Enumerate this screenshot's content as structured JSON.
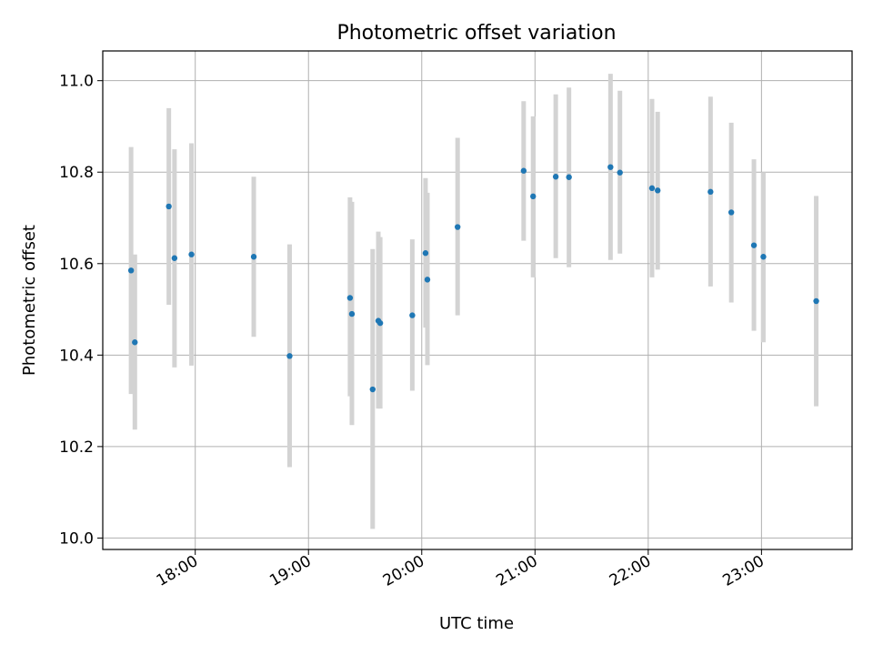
{
  "chart_data": {
    "type": "scatter",
    "title": "Photometric offset variation",
    "xlabel": "UTC time",
    "ylabel": "Photometric offset",
    "xlim": [
      "17:11",
      "23:48"
    ],
    "ylim": [
      9.975,
      11.065
    ],
    "x_ticks": [
      "18:00",
      "19:00",
      "20:00",
      "21:00",
      "22:00",
      "23:00"
    ],
    "y_ticks": [
      "10.0",
      "10.2",
      "10.4",
      "10.6",
      "10.8",
      "11.0"
    ],
    "grid": true,
    "marker_color": "#1f77b4",
    "errorbar_color": "#d3d3d3",
    "points": [
      {
        "x": "17:26",
        "y": 10.585,
        "yerr_low": 10.315,
        "yerr_high": 10.855
      },
      {
        "x": "17:28",
        "y": 10.428,
        "yerr_low": 10.237,
        "yerr_high": 10.62
      },
      {
        "x": "17:46",
        "y": 10.725,
        "yerr_low": 10.51,
        "yerr_high": 10.94
      },
      {
        "x": "17:49",
        "y": 10.612,
        "yerr_low": 10.373,
        "yerr_high": 10.85
      },
      {
        "x": "17:58",
        "y": 10.62,
        "yerr_low": 10.377,
        "yerr_high": 10.863
      },
      {
        "x": "18:31",
        "y": 10.615,
        "yerr_low": 10.44,
        "yerr_high": 10.79
      },
      {
        "x": "18:50",
        "y": 10.398,
        "yerr_low": 10.155,
        "yerr_high": 10.642
      },
      {
        "x": "19:22",
        "y": 10.525,
        "yerr_low": 10.31,
        "yerr_high": 10.745
      },
      {
        "x": "19:23",
        "y": 10.49,
        "yerr_low": 10.247,
        "yerr_high": 10.735
      },
      {
        "x": "19:34",
        "y": 10.325,
        "yerr_low": 10.02,
        "yerr_high": 10.632
      },
      {
        "x": "19:37",
        "y": 10.475,
        "yerr_low": 10.283,
        "yerr_high": 10.67
      },
      {
        "x": "19:38",
        "y": 10.47,
        "yerr_low": 10.283,
        "yerr_high": 10.658
      },
      {
        "x": "19:55",
        "y": 10.487,
        "yerr_low": 10.322,
        "yerr_high": 10.653
      },
      {
        "x": "20:02",
        "y": 10.623,
        "yerr_low": 10.46,
        "yerr_high": 10.787
      },
      {
        "x": "20:03",
        "y": 10.565,
        "yerr_low": 10.378,
        "yerr_high": 10.755
      },
      {
        "x": "20:19",
        "y": 10.68,
        "yerr_low": 10.487,
        "yerr_high": 10.875
      },
      {
        "x": "20:54",
        "y": 10.803,
        "yerr_low": 10.65,
        "yerr_high": 10.955
      },
      {
        "x": "20:59",
        "y": 10.747,
        "yerr_low": 10.57,
        "yerr_high": 10.922
      },
      {
        "x": "21:11",
        "y": 10.79,
        "yerr_low": 10.612,
        "yerr_high": 10.97
      },
      {
        "x": "21:18",
        "y": 10.789,
        "yerr_low": 10.592,
        "yerr_high": 10.985
      },
      {
        "x": "21:40",
        "y": 10.811,
        "yerr_low": 10.608,
        "yerr_high": 11.015
      },
      {
        "x": "21:45",
        "y": 10.799,
        "yerr_low": 10.622,
        "yerr_high": 10.978
      },
      {
        "x": "22:02",
        "y": 10.765,
        "yerr_low": 10.57,
        "yerr_high": 10.96
      },
      {
        "x": "22:05",
        "y": 10.76,
        "yerr_low": 10.587,
        "yerr_high": 10.932
      },
      {
        "x": "22:33",
        "y": 10.757,
        "yerr_low": 10.55,
        "yerr_high": 10.965
      },
      {
        "x": "22:44",
        "y": 10.712,
        "yerr_low": 10.515,
        "yerr_high": 10.908
      },
      {
        "x": "22:56",
        "y": 10.64,
        "yerr_low": 10.453,
        "yerr_high": 10.828
      },
      {
        "x": "23:01",
        "y": 10.615,
        "yerr_low": 10.428,
        "yerr_high": 10.8
      },
      {
        "x": "23:29",
        "y": 10.518,
        "yerr_low": 10.288,
        "yerr_high": 10.748
      }
    ]
  }
}
